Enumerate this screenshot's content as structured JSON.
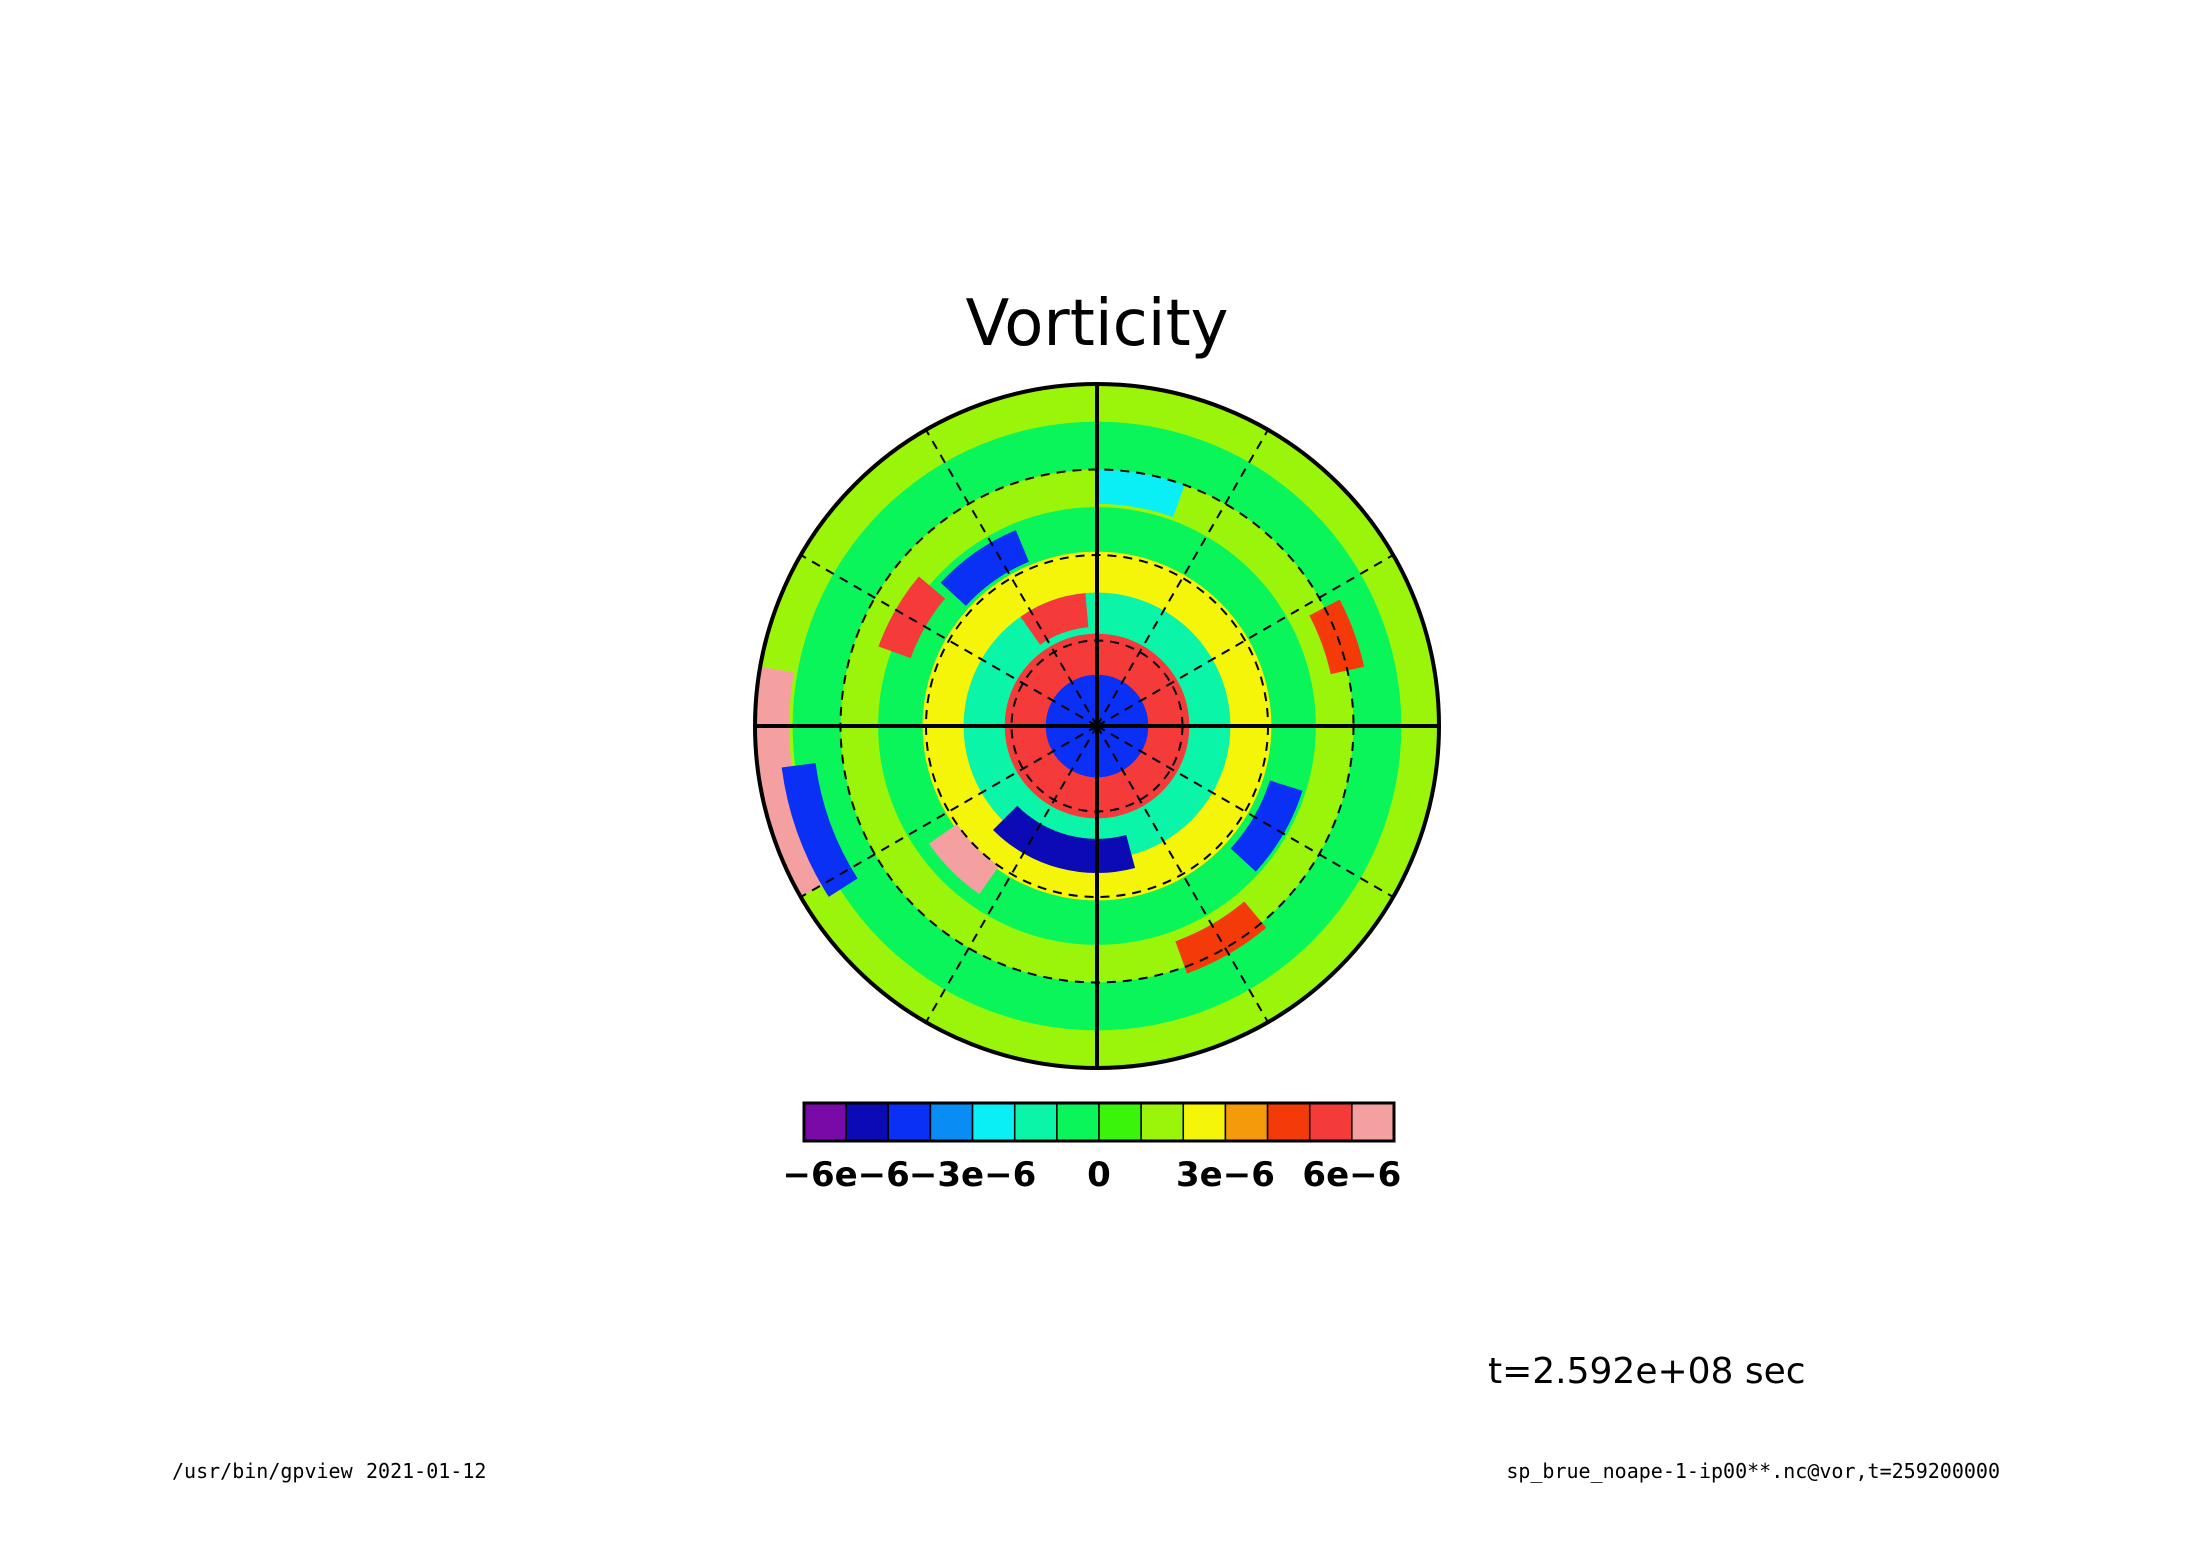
{
  "chart_data": {
    "type": "heatmap",
    "title": "Vorticity",
    "projection": "polar-stereographic",
    "colorbar": {
      "colors": [
        "#7a0aa8",
        "#0b0ab4",
        "#0a2ff5",
        "#0a8cf5",
        "#0aeef5",
        "#0af5a8",
        "#0af55a",
        "#3af50a",
        "#9af50a",
        "#f5f50a",
        "#f59a0a",
        "#f53a0a",
        "#f53a3a",
        "#f5a0a0"
      ],
      "levels": [
        -7e-06,
        -6e-06,
        -5e-06,
        -4e-06,
        -3e-06,
        -2e-06,
        -1e-06,
        0,
        1e-06,
        2e-06,
        3e-06,
        4e-06,
        5e-06,
        6e-06,
        7e-06
      ],
      "tick_labels": [
        {
          "label": "−6e−6",
          "value": -6e-06
        },
        {
          "label": "−3e−6",
          "value": -3e-06
        },
        {
          "label": "0",
          "value": 0
        },
        {
          "label": "3e−6",
          "value": 3e-06
        },
        {
          "label": "6e−6",
          "value": 6e-06
        }
      ]
    },
    "graticule": {
      "meridian_spacing_deg": 30,
      "solid_meridians_deg": [
        0,
        90,
        180,
        270
      ],
      "dashed_circles": 3
    },
    "field_rings": [
      {
        "r": 0.06,
        "value": -4.5e-06
      },
      {
        "r": 0.18,
        "value": 5.5e-06
      },
      {
        "r": 0.3,
        "value": -1.5e-06
      },
      {
        "r": 0.42,
        "value": 2.5e-06
      },
      {
        "r": 0.55,
        "value": -5e-07
      },
      {
        "r": 0.66,
        "value": 1.5e-06
      },
      {
        "r": 0.8,
        "value": -1e-06
      },
      {
        "r": 0.92,
        "value": 1e-06
      }
    ],
    "field_features": [
      {
        "r": 0.34,
        "theta_deg": 110,
        "value": 5.5e-06,
        "extent_deg": 30
      },
      {
        "r": 0.57,
        "theta_deg": 125,
        "value": -5e-06,
        "extent_deg": 25
      },
      {
        "r": 0.38,
        "theta_deg": 255,
        "value": -6e-06,
        "extent_deg": 60
      },
      {
        "r": 0.55,
        "theta_deg": 225,
        "value": 6e-06,
        "extent_deg": 20
      },
      {
        "r": 0.63,
        "theta_deg": 150,
        "value": 5e-06,
        "extent_deg": 20
      },
      {
        "r": 0.58,
        "theta_deg": 330,
        "value": -4.5e-06,
        "extent_deg": 25
      },
      {
        "r": 0.75,
        "theta_deg": 20,
        "value": 4.5e-06,
        "extent_deg": 15
      },
      {
        "r": 0.95,
        "theta_deg": 190,
        "value": 6e-06,
        "extent_deg": 40
      },
      {
        "r": 0.88,
        "theta_deg": 200,
        "value": -5e-06,
        "extent_deg": 25
      },
      {
        "r": 0.7,
        "theta_deg": 80,
        "value": -3e-06,
        "extent_deg": 20
      },
      {
        "r": 0.72,
        "theta_deg": 300,
        "value": 4.5e-06,
        "extent_deg": 20
      }
    ]
  },
  "annotations": {
    "time": "t=2.592e+08 sec",
    "program": "/usr/bin/gpview",
    "date": "2021-01-12",
    "source": "sp_brue_noape-1-ip00**.nc@vor,t=259200000"
  }
}
